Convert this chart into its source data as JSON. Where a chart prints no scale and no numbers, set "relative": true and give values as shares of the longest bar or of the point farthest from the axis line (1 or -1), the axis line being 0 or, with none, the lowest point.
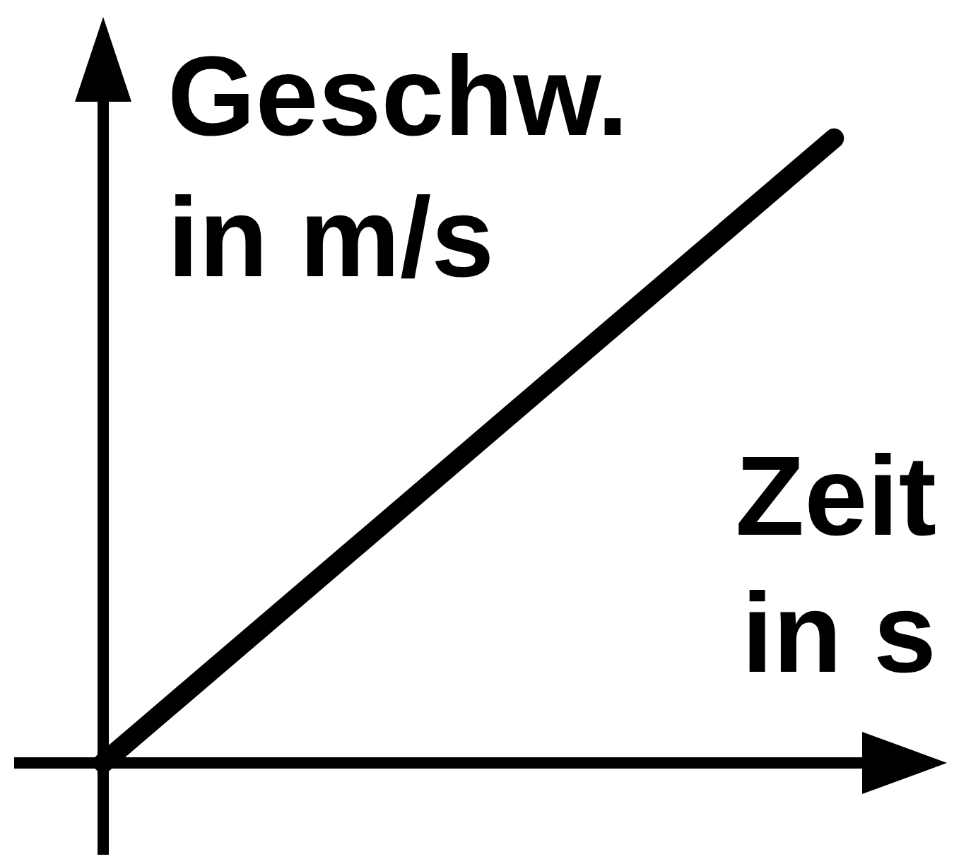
{
  "chart_data": {
    "type": "line",
    "relative": true,
    "xlabel": "Zeit in s",
    "ylabel": "Geschw. in m/s",
    "categories": [
      null,
      null
    ],
    "values": [
      0,
      1
    ],
    "color": "#000000"
  }
}
